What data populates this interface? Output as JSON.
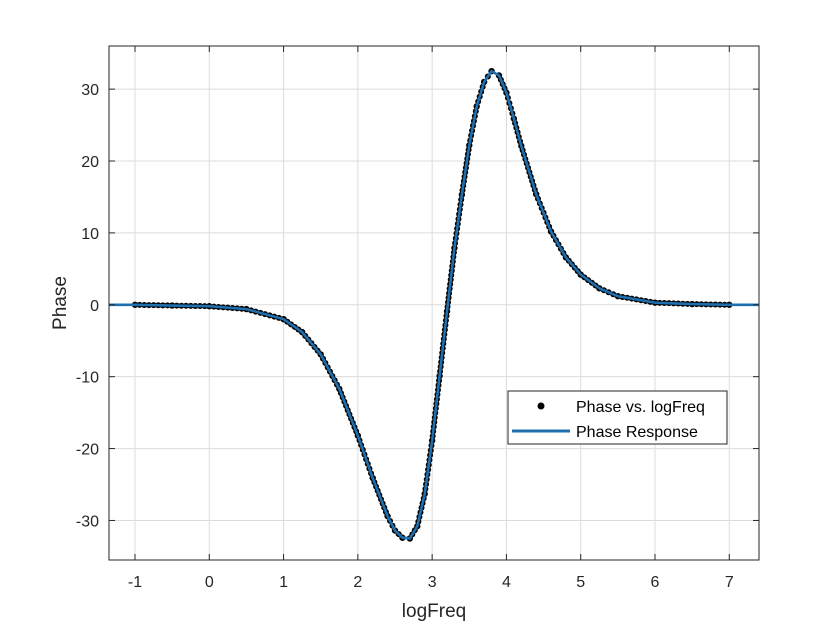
{
  "chart_data": {
    "type": "line",
    "title": "",
    "xlabel": "logFreq",
    "ylabel": "Phase",
    "xlim": [
      -1.35,
      7.4
    ],
    "ylim": [
      -35.5,
      36
    ],
    "x_ticks": [
      -1,
      0,
      1,
      2,
      3,
      4,
      5,
      6,
      7
    ],
    "y_ticks": [
      -30,
      -20,
      -10,
      0,
      10,
      20,
      30
    ],
    "x_tick_labels": [
      "-1",
      "0",
      "1",
      "2",
      "3",
      "4",
      "5",
      "6",
      "7"
    ],
    "y_tick_labels": [
      "-30",
      "-20",
      "-10",
      "0",
      "10",
      "20",
      "30"
    ],
    "grid": true,
    "legend_position": "lower-right",
    "series": [
      {
        "name": "Phase vs. logFreq",
        "style": "markers",
        "color": "#000000",
        "x": [
          -1.0,
          -0.5,
          0.0,
          0.5,
          1.0,
          1.25,
          1.5,
          1.75,
          2.0,
          2.2,
          2.4,
          2.5,
          2.6,
          2.7,
          2.8,
          2.9,
          3.0,
          3.1,
          3.2,
          3.3,
          3.4,
          3.5,
          3.6,
          3.7,
          3.8,
          3.9,
          4.0,
          4.1,
          4.2,
          4.4,
          4.6,
          4.8,
          5.0,
          5.25,
          5.5,
          6.0,
          6.5,
          7.0
        ],
        "y": [
          0.0,
          -0.1,
          -0.2,
          -0.6,
          -2.0,
          -3.8,
          -6.9,
          -11.7,
          -18.2,
          -24.1,
          -29.4,
          -31.4,
          -32.4,
          -32.5,
          -30.8,
          -26.3,
          -18.9,
          -9.9,
          -0.9,
          7.9,
          15.3,
          22.2,
          27.6,
          31.0,
          32.5,
          31.9,
          29.5,
          25.9,
          22.1,
          15.4,
          10.2,
          6.6,
          4.2,
          2.3,
          1.2,
          0.3,
          0.1,
          0.0
        ]
      },
      {
        "name": "Phase Response",
        "style": "line",
        "color": "#1f6fae",
        "x": [
          -1.35,
          -1.0,
          -0.5,
          0.0,
          0.5,
          1.0,
          1.25,
          1.5,
          1.75,
          2.0,
          2.2,
          2.4,
          2.5,
          2.6,
          2.7,
          2.8,
          2.9,
          3.0,
          3.1,
          3.2,
          3.3,
          3.4,
          3.5,
          3.6,
          3.7,
          3.8,
          3.9,
          4.0,
          4.1,
          4.2,
          4.4,
          4.6,
          4.8,
          5.0,
          5.25,
          5.5,
          6.0,
          6.5,
          7.0,
          7.4
        ],
        "y": [
          0.0,
          0.0,
          -0.1,
          -0.2,
          -0.6,
          -2.0,
          -3.8,
          -6.9,
          -11.7,
          -18.2,
          -24.1,
          -29.4,
          -31.4,
          -32.4,
          -32.5,
          -30.8,
          -26.3,
          -18.9,
          -9.9,
          -0.9,
          7.9,
          15.3,
          22.2,
          27.6,
          31.0,
          32.5,
          31.9,
          29.5,
          25.9,
          22.1,
          15.4,
          10.2,
          6.6,
          4.2,
          2.3,
          1.2,
          0.3,
          0.1,
          0.0,
          0.0
        ]
      }
    ]
  }
}
